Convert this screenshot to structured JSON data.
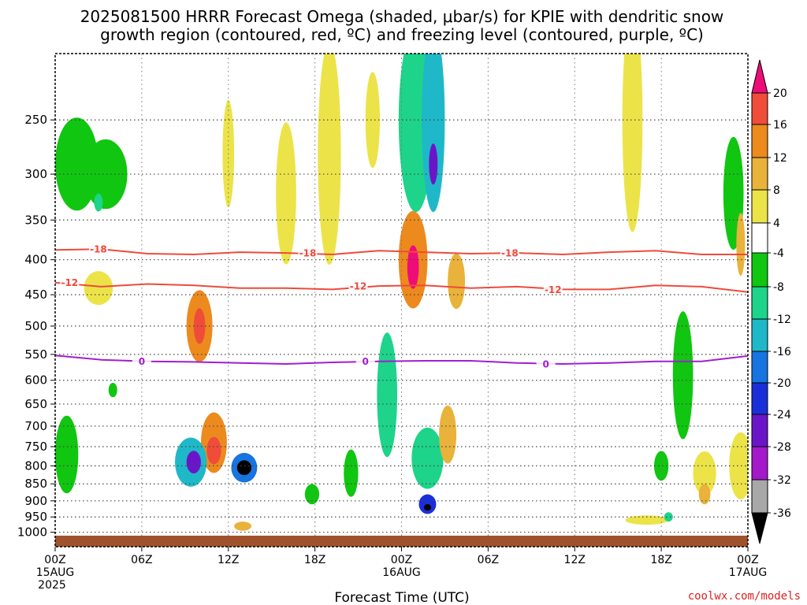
{
  "title_line1": "2025081500 HRRR Forecast Omega (shaded, μbar/s) for KPIE with dendritic snow",
  "title_line2": "growth region (contoured, red, ºC) and freezing level (contoured, purple, ºC)",
  "credit": "coolwx.com/models",
  "chart_data": {
    "type": "heatmap",
    "xlabel": "Forecast Time (UTC)",
    "x_range_hours": [
      0,
      48
    ],
    "y_levels_hpa": [
      250,
      300,
      350,
      400,
      450,
      500,
      550,
      600,
      650,
      700,
      750,
      800,
      850,
      900,
      950,
      1000
    ],
    "y_range_hpa": [
      200,
      1050
    ],
    "x_ticks": [
      {
        "hour": 0,
        "label": "00Z",
        "sub1": "15AUG",
        "sub2": "2025"
      },
      {
        "hour": 6,
        "label": "06Z",
        "sub1": "",
        "sub2": ""
      },
      {
        "hour": 12,
        "label": "12Z",
        "sub1": "",
        "sub2": ""
      },
      {
        "hour": 18,
        "label": "18Z",
        "sub1": "",
        "sub2": ""
      },
      {
        "hour": 24,
        "label": "00Z",
        "sub1": "16AUG",
        "sub2": ""
      },
      {
        "hour": 30,
        "label": "06Z",
        "sub1": "",
        "sub2": ""
      },
      {
        "hour": 36,
        "label": "12Z",
        "sub1": "",
        "sub2": ""
      },
      {
        "hour": 42,
        "label": "18Z",
        "sub1": "",
        "sub2": ""
      },
      {
        "hour": 48,
        "label": "00Z",
        "sub1": "17AUG",
        "sub2": ""
      }
    ],
    "colorbar": {
      "labels": [
        "20",
        "16",
        "12",
        "8",
        "4",
        "-4",
        "-8",
        "-12",
        "-16",
        "-20",
        "-24",
        "-28",
        "-32",
        "-36"
      ],
      "colors": [
        "#ee0d78",
        "#f04c3a",
        "#ec8a1e",
        "#e9b23a",
        "#ece349",
        "#ffffff",
        "#10c610",
        "#1dd48a",
        "#1fb8c8",
        "#1774e0",
        "#1a2fd8",
        "#6a16c8",
        "#a419c9",
        "#a8a8a8",
        "#000000"
      ]
    },
    "contours": [
      {
        "label": "-18",
        "color": "#ee4a3c",
        "hpa": [
          387,
          386,
          392,
          393,
          390,
          391,
          393,
          388,
          390,
          392,
          391,
          393,
          390,
          388,
          393,
          393
        ],
        "label_hours": [
          3,
          17.5,
          31.5
        ]
      },
      {
        "label": "-12",
        "color": "#ee4a3c",
        "hpa": [
          432,
          438,
          434,
          436,
          440,
          440,
          442,
          437,
          436,
          440,
          438,
          442,
          442,
          436,
          438,
          446
        ],
        "label_hours": [
          1,
          21,
          34.5
        ]
      },
      {
        "label": "0",
        "color": "#a21ecf",
        "hpa": [
          552,
          560,
          563,
          564,
          566,
          568,
          565,
          563,
          562,
          562,
          566,
          568,
          566,
          563,
          563,
          553
        ],
        "label_hours": [
          6,
          21.5,
          34
        ]
      }
    ],
    "omega_blobs": [
      {
        "h": 1.5,
        "p": 290,
        "wh": 1.5,
        "wp": 90,
        "v": -6
      },
      {
        "h": 3.5,
        "p": 300,
        "wh": 1.5,
        "wp": 70,
        "v": -6
      },
      {
        "h": 3.0,
        "p": 330,
        "wh": 0.3,
        "wp": 20,
        "v": -10
      },
      {
        "h": 0.8,
        "p": 770,
        "wh": 0.8,
        "wp": 200,
        "v": -6
      },
      {
        "h": 4.0,
        "p": 620,
        "wh": 0.3,
        "wp": 30,
        "v": -6
      },
      {
        "h": 3.0,
        "p": 440,
        "wh": 1.0,
        "wp": 50,
        "v": 6
      },
      {
        "h": 10.0,
        "p": 500,
        "wh": 0.9,
        "wp": 120,
        "v": 14
      },
      {
        "h": 10.0,
        "p": 500,
        "wh": 0.4,
        "wp": 60,
        "v": 19
      },
      {
        "h": 11.0,
        "p": 740,
        "wh": 0.9,
        "wp": 150,
        "v": 12
      },
      {
        "h": 11.0,
        "p": 760,
        "wh": 0.5,
        "wp": 70,
        "v": 19
      },
      {
        "h": 9.4,
        "p": 790,
        "wh": 1.1,
        "wp": 130,
        "v": -14
      },
      {
        "h": 9.6,
        "p": 790,
        "wh": 0.5,
        "wp": 60,
        "v": -24
      },
      {
        "h": 13.1,
        "p": 805,
        "wh": 0.9,
        "wp": 80,
        "v": -16
      },
      {
        "h": 13.1,
        "p": 805,
        "wh": 0.5,
        "wp": 40,
        "v": -36
      },
      {
        "h": 12.0,
        "p": 280,
        "wh": 0.4,
        "wp": 100,
        "v": 5
      },
      {
        "h": 13.0,
        "p": 980,
        "wh": 0.6,
        "wp": 30,
        "v": 8
      },
      {
        "h": 16.0,
        "p": 320,
        "wh": 0.7,
        "wp": 150,
        "v": 5
      },
      {
        "h": 19.0,
        "p": 280,
        "wh": 0.8,
        "wp": 200,
        "v": 5
      },
      {
        "h": 24.8,
        "p": 400,
        "wh": 1.0,
        "wp": 130,
        "v": 12
      },
      {
        "h": 24.8,
        "p": 410,
        "wh": 0.4,
        "wp": 60,
        "v": 20
      },
      {
        "h": 22.0,
        "p": 250,
        "wh": 0.5,
        "wp": 80,
        "v": 5
      },
      {
        "h": 25.0,
        "p": 250,
        "wh": 1.2,
        "wp": 150,
        "v": -8
      },
      {
        "h": 26.2,
        "p": 250,
        "wh": 0.8,
        "wp": 150,
        "v": -14
      },
      {
        "h": 26.2,
        "p": 290,
        "wh": 0.3,
        "wp": 40,
        "v": -24
      },
      {
        "h": 27.8,
        "p": 430,
        "wh": 0.6,
        "wp": 80,
        "v": 10
      },
      {
        "h": 23.0,
        "p": 630,
        "wh": 0.7,
        "wp": 260,
        "v": -8
      },
      {
        "h": 25.8,
        "p": 780,
        "wh": 1.1,
        "wp": 160,
        "v": -10
      },
      {
        "h": 25.8,
        "p": 910,
        "wh": 0.6,
        "wp": 60,
        "v": -22
      },
      {
        "h": 25.8,
        "p": 920,
        "wh": 0.25,
        "wp": 20,
        "v": -36
      },
      {
        "h": 27.2,
        "p": 720,
        "wh": 0.6,
        "wp": 140,
        "v": 10
      },
      {
        "h": 20.5,
        "p": 820,
        "wh": 0.5,
        "wp": 130,
        "v": -6
      },
      {
        "h": 17.8,
        "p": 880,
        "wh": 0.5,
        "wp": 60,
        "v": -6
      },
      {
        "h": 40.0,
        "p": 250,
        "wh": 0.7,
        "wp": 180,
        "v": 5
      },
      {
        "h": 47.0,
        "p": 320,
        "wh": 0.7,
        "wp": 120,
        "v": -6
      },
      {
        "h": 47.5,
        "p": 380,
        "wh": 0.3,
        "wp": 80,
        "v": 10
      },
      {
        "h": 43.5,
        "p": 590,
        "wh": 0.7,
        "wp": 250,
        "v": -7
      },
      {
        "h": 45.0,
        "p": 820,
        "wh": 0.8,
        "wp": 120,
        "v": 6
      },
      {
        "h": 45.0,
        "p": 880,
        "wh": 0.4,
        "wp": 60,
        "v": 11
      },
      {
        "h": 47.5,
        "p": 800,
        "wh": 0.8,
        "wp": 180,
        "v": 6
      },
      {
        "h": 42.0,
        "p": 800,
        "wh": 0.5,
        "wp": 80,
        "v": -6
      },
      {
        "h": 41.0,
        "p": 960,
        "wh": 1.5,
        "wp": 30,
        "v": 5
      },
      {
        "h": 42.5,
        "p": 950,
        "wh": 0.3,
        "wp": 30,
        "v": -8
      }
    ]
  }
}
